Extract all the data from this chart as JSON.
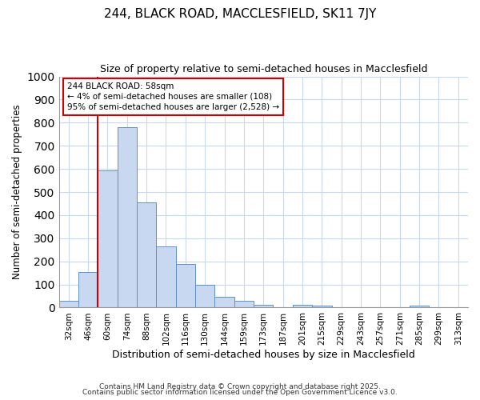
{
  "title": "244, BLACK ROAD, MACCLESFIELD, SK11 7JY",
  "subtitle": "Size of property relative to semi-detached houses in Macclesfield",
  "xlabel": "Distribution of semi-detached houses by size in Macclesfield",
  "ylabel": "Number of semi-detached properties",
  "categories": [
    "32sqm",
    "46sqm",
    "60sqm",
    "74sqm",
    "88sqm",
    "102sqm",
    "116sqm",
    "130sqm",
    "144sqm",
    "159sqm",
    "173sqm",
    "187sqm",
    "201sqm",
    "215sqm",
    "229sqm",
    "243sqm",
    "257sqm",
    "271sqm",
    "285sqm",
    "299sqm",
    "313sqm"
  ],
  "values": [
    28,
    155,
    595,
    780,
    455,
    265,
    190,
    97,
    48,
    30,
    12,
    0,
    12,
    10,
    0,
    0,
    0,
    0,
    8,
    0,
    0
  ],
  "bar_color": "#c8d8f0",
  "bar_edge_color": "#6090c8",
  "red_line_x": 1.5,
  "red_line_color": "#cc0000",
  "annotation_text": "244 BLACK ROAD: 58sqm\n← 4% of semi-detached houses are smaller (108)\n95% of semi-detached houses are larger (2,528) →",
  "annotation_box_color": "#ffffff",
  "annotation_box_edge": "#cc0000",
  "ylim": [
    0,
    1000
  ],
  "yticks": [
    0,
    100,
    200,
    300,
    400,
    500,
    600,
    700,
    800,
    900,
    1000
  ],
  "grid_color": "#c8d8f0",
  "background_color": "#ffffff",
  "footer1": "Contains HM Land Registry data © Crown copyright and database right 2025.",
  "footer2": "Contains public sector information licensed under the Open Government Licence v3.0."
}
